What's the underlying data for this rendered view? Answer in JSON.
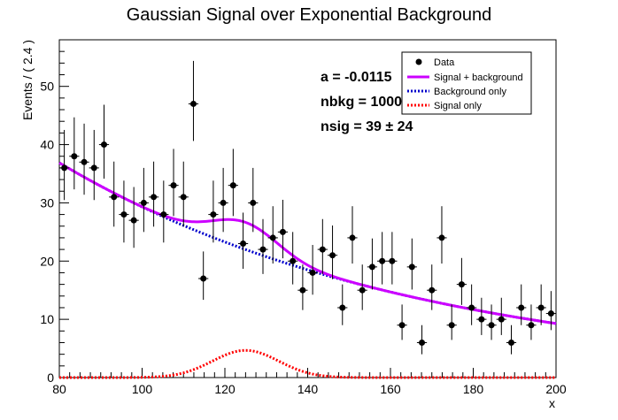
{
  "chart_data": {
    "type": "scatter",
    "title": "Gaussian Signal over Exponential Background",
    "xlabel": "x",
    "ylabel": "Events / ( 2.4 )",
    "xlim": [
      80,
      200
    ],
    "ylim": [
      0,
      58
    ],
    "x_ticks": [
      80,
      100,
      120,
      140,
      160,
      180,
      200
    ],
    "x_tick_labels": [
      "80",
      "100",
      "120",
      "140",
      "160",
      "180",
      "200"
    ],
    "y_ticks": [
      0,
      10,
      20,
      30,
      40,
      50
    ],
    "y_tick_labels": [
      "0",
      "10",
      "20",
      "30",
      "40",
      "50"
    ],
    "bin_width": 2.4,
    "data": {
      "name": "Data",
      "x": [
        81.2,
        83.6,
        86.0,
        88.4,
        90.8,
        93.2,
        95.6,
        98.0,
        100.4,
        102.8,
        105.2,
        107.6,
        110.0,
        112.4,
        114.8,
        117.2,
        119.6,
        122.0,
        124.4,
        126.8,
        129.2,
        131.6,
        134.0,
        136.4,
        138.8,
        141.2,
        143.6,
        146.0,
        148.4,
        150.8,
        153.2,
        155.6,
        158.0,
        160.4,
        162.8,
        165.2,
        167.6,
        170.0,
        172.4,
        174.8,
        177.2,
        179.6,
        182.0,
        184.4,
        186.8,
        189.2,
        191.6,
        194.0,
        196.4,
        198.8
      ],
      "y": [
        36,
        38,
        37,
        36,
        40,
        31,
        28,
        27,
        30,
        31,
        28,
        33,
        31,
        47,
        17,
        28,
        30,
        33,
        23,
        30,
        22,
        24,
        25,
        20,
        15,
        18,
        22,
        21,
        12,
        24,
        15,
        19,
        20,
        20,
        9,
        19,
        6,
        15,
        24,
        9,
        16,
        12,
        10,
        9,
        10,
        6,
        12,
        9,
        12,
        11
      ]
    },
    "series": [
      {
        "name": "Signal + background",
        "color": "#cc00ff",
        "style": "solid",
        "a": -0.0115,
        "nbkg": 1000,
        "nsig": 39,
        "mean": 125,
        "sigma": 8
      },
      {
        "name": "Background only",
        "color": "#0000cc",
        "style": "dotted",
        "a": -0.0115,
        "nbkg": 1000
      },
      {
        "name": "Signal only",
        "color": "#ff0000",
        "style": "dotted",
        "nsig": 39,
        "mean": 125,
        "sigma": 8
      }
    ],
    "legend": {
      "position": "top-right",
      "entries": [
        "Data",
        "Signal + background",
        "Background only",
        "Signal only"
      ]
    },
    "annotations": [
      {
        "label": "a = ",
        "value": "-0.0115"
      },
      {
        "label": "nbkg = ",
        "value": "1000"
      },
      {
        "label": "nsig = ",
        "value": "39 ± 24"
      }
    ]
  }
}
